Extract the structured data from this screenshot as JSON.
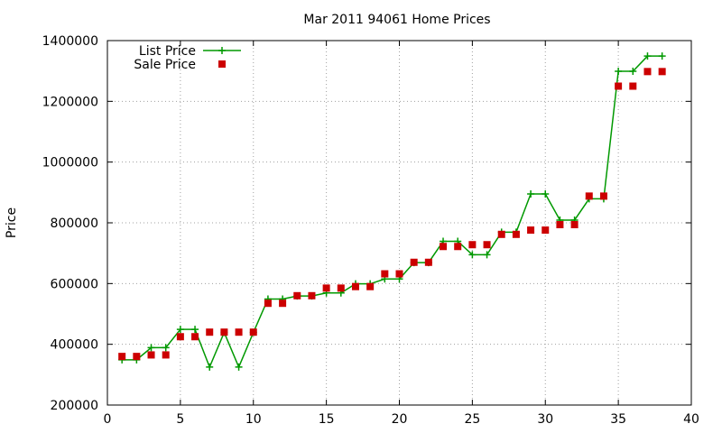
{
  "chart_data": {
    "type": "line",
    "title": "Mar 2011 94061 Home Prices",
    "xlabel": "",
    "ylabel": "Price",
    "xlim": [
      0,
      40
    ],
    "ylim": [
      200000,
      1400000
    ],
    "x_ticks": [
      0,
      5,
      10,
      15,
      20,
      25,
      30,
      35,
      40
    ],
    "y_ticks": [
      200000,
      400000,
      600000,
      800000,
      1000000,
      1200000,
      1400000
    ],
    "x_tick_labels": [
      "0",
      "5",
      "10",
      "15",
      "20",
      "25",
      "30",
      "35",
      "40"
    ],
    "y_tick_labels": [
      "200000",
      "400000",
      "600000",
      "800000",
      "1000000",
      "1200000",
      "1400000"
    ],
    "grid": true,
    "legend_position": "top-left",
    "series": [
      {
        "name": "List Price",
        "style": "line-with-plus-markers",
        "color": "#009900",
        "x": [
          1,
          2,
          3,
          4,
          5,
          6,
          7,
          8,
          9,
          10,
          11,
          12,
          13,
          14,
          15,
          16,
          17,
          18,
          19,
          20,
          21,
          22,
          23,
          24,
          25,
          26,
          27,
          28,
          29,
          30,
          31,
          32,
          33,
          34,
          35,
          36,
          37,
          38
        ],
        "values": [
          349000,
          349000,
          389000,
          389000,
          449000,
          449000,
          325000,
          439000,
          325000,
          439000,
          549000,
          549000,
          559000,
          559000,
          569000,
          569000,
          599000,
          599000,
          615000,
          615000,
          669000,
          669000,
          739000,
          739000,
          695000,
          695000,
          769000,
          769000,
          895000,
          895000,
          809000,
          809000,
          879000,
          879000,
          1299000,
          1299000,
          1349000,
          1349000
        ]
      },
      {
        "name": "Sale Price",
        "style": "square-markers",
        "color": "#cc0000",
        "x": [
          1,
          2,
          3,
          4,
          5,
          6,
          7,
          8,
          9,
          10,
          11,
          12,
          13,
          14,
          15,
          16,
          17,
          18,
          19,
          20,
          21,
          22,
          23,
          24,
          25,
          26,
          27,
          28,
          29,
          30,
          31,
          32,
          33,
          34,
          35,
          36,
          37,
          38
        ],
        "values": [
          360000,
          360000,
          365000,
          365000,
          425000,
          425000,
          440000,
          440000,
          440000,
          440000,
          535000,
          535000,
          560000,
          560000,
          585000,
          585000,
          590000,
          590000,
          632000,
          632000,
          670000,
          670000,
          722000,
          722000,
          728000,
          728000,
          762000,
          762000,
          776000,
          776000,
          794000,
          794000,
          888000,
          888000,
          1250000,
          1250000,
          1298000,
          1298000
        ]
      }
    ]
  }
}
